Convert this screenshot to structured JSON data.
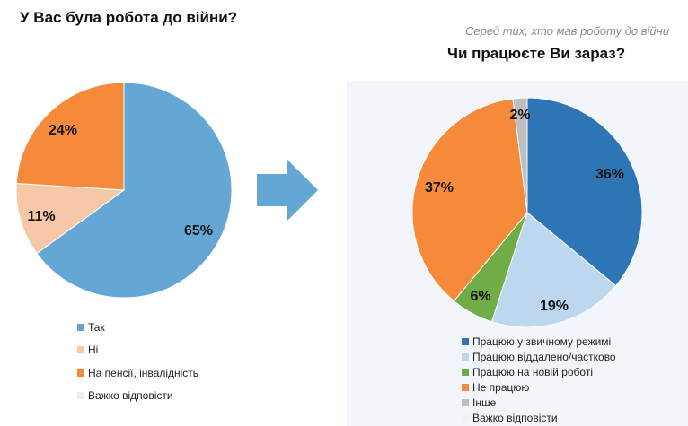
{
  "left": {
    "title": "У Вас була робота до війни?",
    "legend": [
      {
        "label": "Так",
        "color": "#65a7d4"
      },
      {
        "label": "Ні",
        "color": "#f6c8a7"
      },
      {
        "label": "На пенсії, інвалідність",
        "color": "#f58a3a"
      },
      {
        "label": "Важко відповісти",
        "color": "#eeeeee"
      }
    ]
  },
  "right": {
    "subtitle": "Серед тих, хто мав роботу до війни",
    "title": "Чи працюєте Ви зараз?",
    "legend": [
      {
        "label": "Працюю у звичному режимі",
        "color": "#2e75b6"
      },
      {
        "label": "Працюю віддалено/частково",
        "color": "#bdd7ee"
      },
      {
        "label": "Працюю на новій роботі",
        "color": "#70ad47"
      },
      {
        "label": "Не працюю",
        "color": "#f58a3a"
      },
      {
        "label": "Інше",
        "color": "#bfbfbf"
      },
      {
        "label": "Важко відповісти",
        "color": "#f2f2f2"
      }
    ]
  },
  "chart_data": [
    {
      "type": "pie",
      "title": "У Вас була робота до війни?",
      "categories": [
        "Так",
        "Ні",
        "На пенсії, інвалідність",
        "Важко відповісти"
      ],
      "values": [
        65,
        11,
        24,
        0
      ],
      "labels": [
        "65%",
        "11%",
        "24%",
        ""
      ],
      "colors": [
        "#65a7d4",
        "#f6c8a7",
        "#f58a3a",
        "#eeeeee"
      ],
      "legend_position": "bottom"
    },
    {
      "type": "pie",
      "title": "Чи працюєте Ви зараз?",
      "subtitle": "Серед тих, хто мав роботу до війни",
      "categories": [
        "Працюю у звичному режимі",
        "Працюю віддалено/частково",
        "Працюю на новій роботі",
        "Не працюю",
        "Інше",
        "Важко відповісти"
      ],
      "values": [
        36,
        19,
        6,
        37,
        2,
        0
      ],
      "labels": [
        "36%",
        "19%",
        "6%",
        "37%",
        "2%",
        ""
      ],
      "colors": [
        "#2e75b6",
        "#bdd7ee",
        "#70ad47",
        "#f58a3a",
        "#bfbfbf",
        "#f2f2f2"
      ],
      "legend_position": "bottom"
    }
  ]
}
